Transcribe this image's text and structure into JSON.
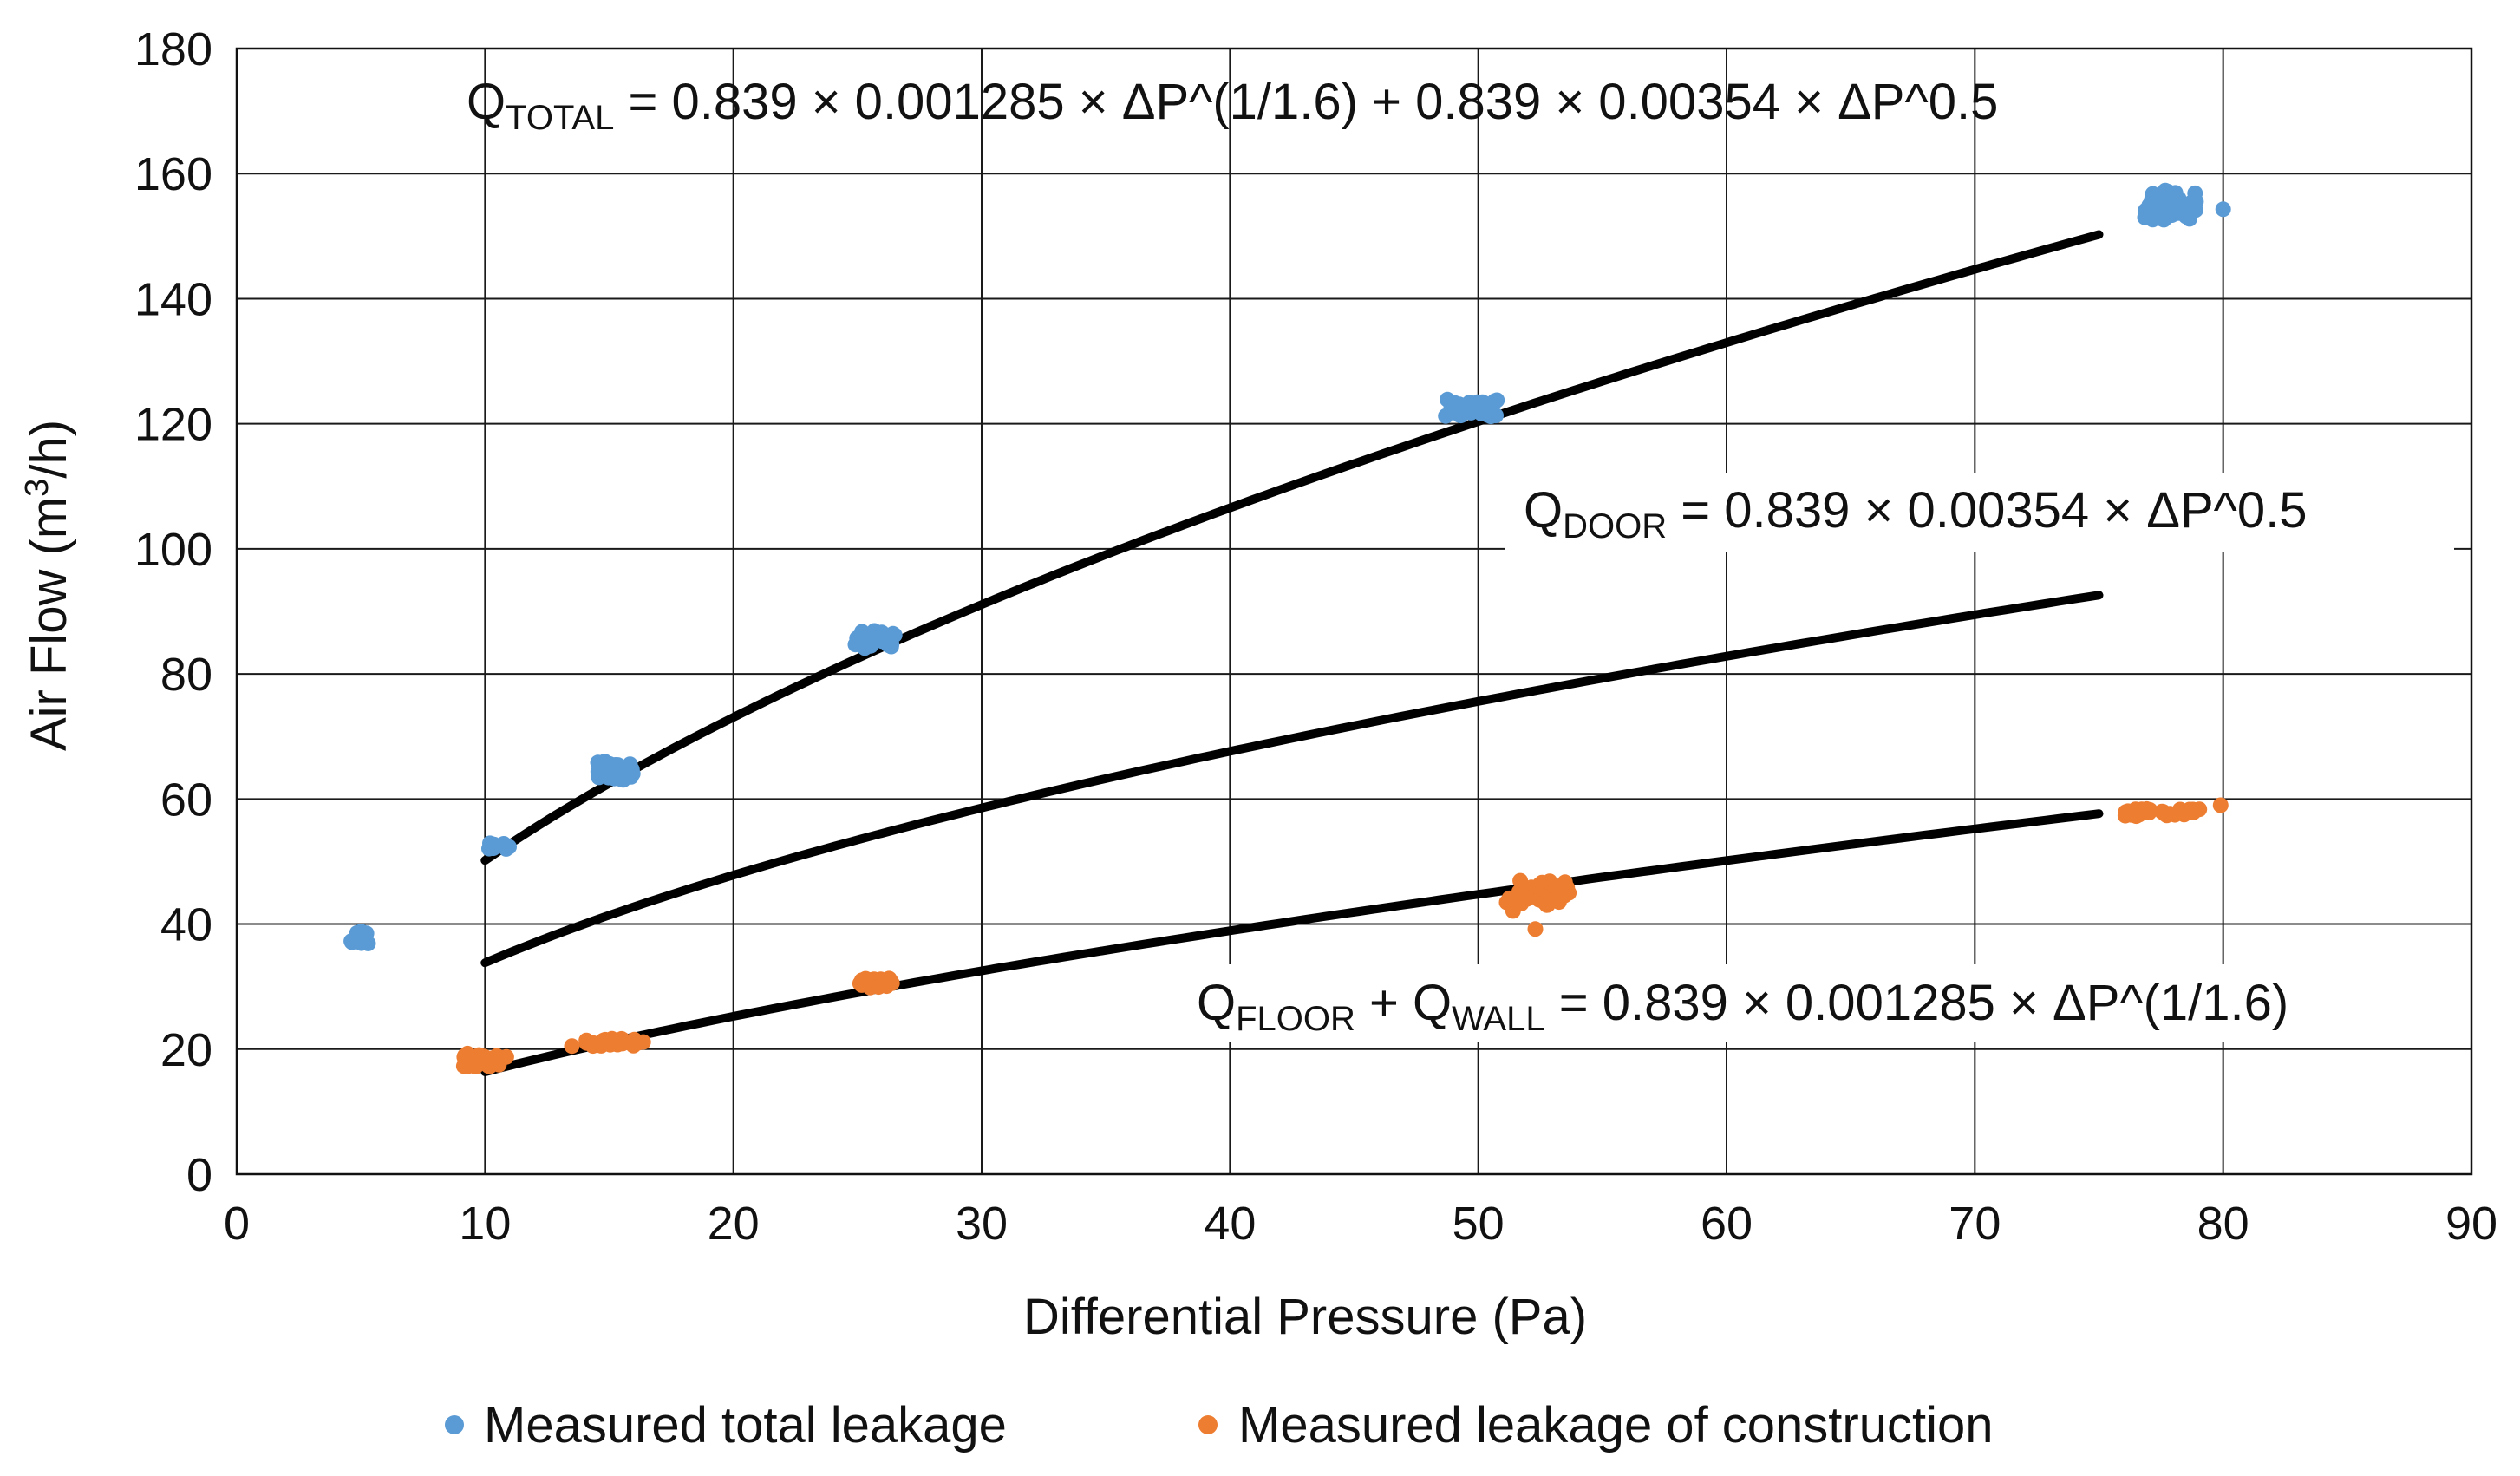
{
  "chart_data": {
    "type": "scatter",
    "title": "",
    "xlabel": "Differential Pressure (Pa)",
    "ylabel": {
      "prefix": "Air Flow (m",
      "superscript": "3",
      "suffix": "/h)"
    },
    "xlim": [
      0,
      90
    ],
    "ylim": [
      0,
      180
    ],
    "x_ticks": [
      0,
      10,
      20,
      30,
      40,
      50,
      60,
      70,
      80,
      90
    ],
    "y_ticks": [
      0,
      20,
      40,
      60,
      80,
      100,
      120,
      140,
      160,
      180
    ],
    "grid": true,
    "legend_position": "bottom",
    "series": [
      {
        "name": "Measured total leakage",
        "color": "#5B9BD5",
        "clusters": [
          {
            "x": 5.0,
            "y": 37.8,
            "x_spread": 0.4,
            "y_spread": 1.0,
            "count": 12
          },
          {
            "x": 10.6,
            "y": 52.6,
            "x_spread": 0.5,
            "y_spread": 0.6,
            "count": 14
          },
          {
            "x": 15.3,
            "y": 64.5,
            "x_spread": 0.8,
            "y_spread": 1.6,
            "count": 26
          },
          {
            "x": 25.7,
            "y": 85.5,
            "x_spread": 0.8,
            "y_spread": 1.4,
            "count": 26
          },
          {
            "x": 49.8,
            "y": 122.5,
            "x_spread": 1.2,
            "y_spread": 1.4,
            "count": 40
          },
          {
            "x": 78.0,
            "y": 155.0,
            "x_spread": 1.2,
            "y_spread": 2.4,
            "count": 44
          }
        ],
        "points": [
          {
            "x": 80.0,
            "y": 154.3
          }
        ]
      },
      {
        "name": "Measured leakage of construction",
        "color": "#ED7D31",
        "clusters": [
          {
            "x": 10.0,
            "y": 18.3,
            "x_spread": 0.9,
            "y_spread": 1.1,
            "count": 26
          },
          {
            "x": 15.2,
            "y": 21.1,
            "x_spread": 1.2,
            "y_spread": 0.6,
            "count": 24
          },
          {
            "x": 25.8,
            "y": 30.6,
            "x_spread": 0.7,
            "y_spread": 0.8,
            "count": 22
          },
          {
            "x": 52.4,
            "y": 45.0,
            "x_spread": 1.3,
            "y_spread": 2.0,
            "count": 36
          },
          {
            "x": 77.5,
            "y": 57.8,
            "x_spread": 1.6,
            "y_spread": 0.6,
            "count": 32
          }
        ],
        "points": [
          {
            "x": 13.5,
            "y": 20.5
          },
          {
            "x": 51.4,
            "y": 42.1
          },
          {
            "x": 52.3,
            "y": 39.2
          },
          {
            "x": 79.9,
            "y": 59.0
          }
        ]
      }
    ],
    "fit_lines": [
      {
        "name": "Q_TOTAL fit",
        "formula": "total",
        "x_range": [
          10,
          75
        ],
        "coef_a": 0.001285,
        "exp_a": 0.625,
        "coef_b": 0.00354,
        "exp_b": 0.5,
        "factor": 0.839,
        "color": "#000000"
      },
      {
        "name": "Q_DOOR fit",
        "formula": "door",
        "x_range": [
          10,
          75
        ],
        "coef_a": 0.0,
        "exp_a": 0.625,
        "coef_b": 0.00354,
        "exp_b": 0.5,
        "factor": 0.839,
        "color": "#000000"
      },
      {
        "name": "Q_FLOOR + Q_WALL fit",
        "formula": "construction",
        "x_range": [
          10,
          75
        ],
        "coef_a": 0.001285,
        "exp_a": 0.625,
        "coef_b": 0.0,
        "exp_b": 0.5,
        "factor": 0.839,
        "color": "#000000"
      }
    ],
    "annotations": {
      "total": {
        "q": "Q",
        "sub": "TOTAL",
        "rest": " = 0.839 × 0.001285 × ΔP^(1/1.6) + 0.839 × 0.00354 × ΔP^0.5"
      },
      "door": {
        "q": "Q",
        "sub": "DOOR",
        "rest": " = 0.839 × 0.00354 × ΔP^0.5"
      },
      "construction": {
        "q1": "Q",
        "sub1": "FLOOR",
        "plus": " + Q",
        "sub2": "WALL",
        "rest": " = 0.839 × 0.001285 × ΔP^(1/1.6)"
      }
    }
  }
}
